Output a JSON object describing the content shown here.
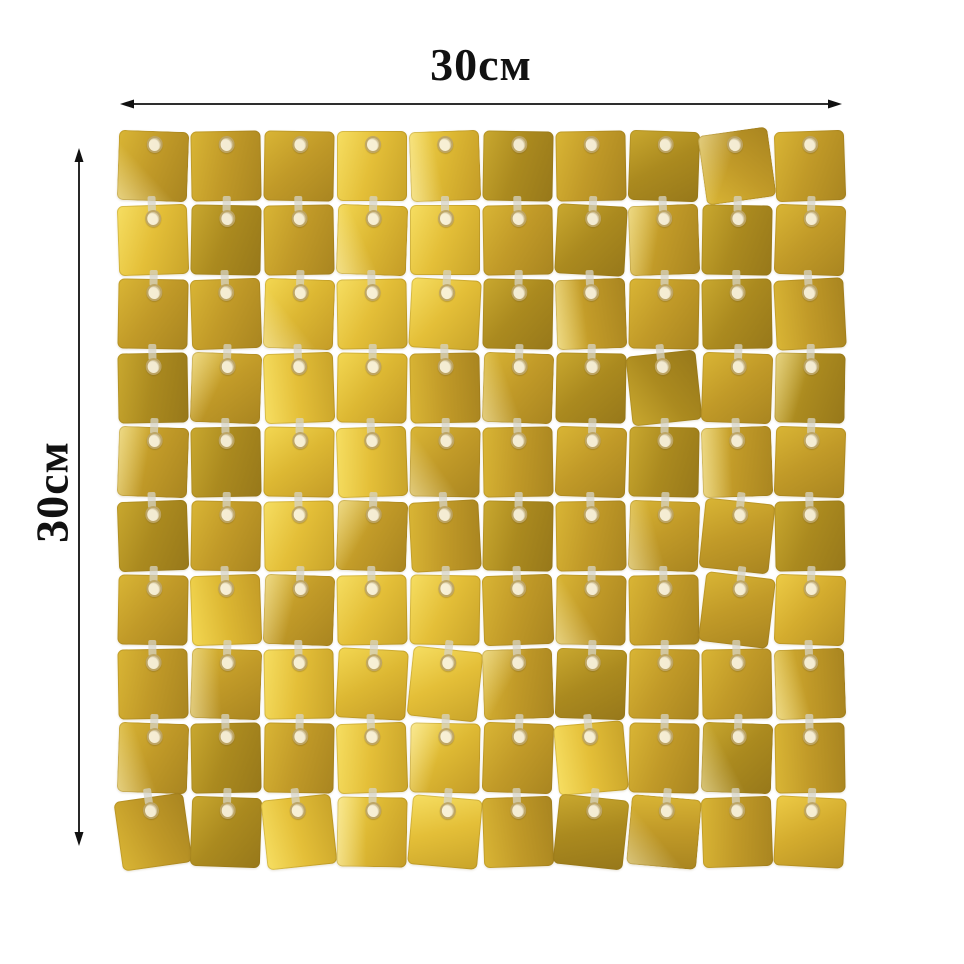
{
  "annotations": {
    "width_label": "30см",
    "height_label": "30см",
    "arrow_color": "#111111"
  },
  "panel": {
    "rows": 10,
    "cols": 10,
    "description": "gold square sequin shimmer wall panel, 10 by 10 grid",
    "background_color": "#ffffff",
    "grommet_fill": "#f8f3e2",
    "grommet_ring": "#9e7e28",
    "palette": [
      [
        "#c9a82f",
        "#ab8a1f",
        "#97781a"
      ],
      [
        "#d9b535",
        "#c19a28",
        "#a98520"
      ],
      [
        "#edcb46",
        "#d4ac2e",
        "#b89224"
      ],
      [
        "#f6de62",
        "#e4bf38",
        "#c9a42a"
      ],
      [
        "#f3d752",
        "#ddb833",
        "#c49c27"
      ]
    ],
    "variants": [
      [
        1,
        1,
        1,
        3,
        4,
        0,
        1,
        0,
        1,
        1
      ],
      [
        3,
        0,
        1,
        4,
        3,
        1,
        0,
        1,
        0,
        1
      ],
      [
        1,
        1,
        4,
        3,
        3,
        0,
        1,
        1,
        0,
        1
      ],
      [
        0,
        1,
        3,
        4,
        1,
        1,
        0,
        0,
        1,
        0
      ],
      [
        1,
        0,
        4,
        3,
        1,
        1,
        1,
        0,
        1,
        1
      ],
      [
        0,
        1,
        3,
        1,
        1,
        0,
        1,
        1,
        1,
        0
      ],
      [
        1,
        4,
        1,
        3,
        3,
        1,
        1,
        1,
        1,
        2
      ],
      [
        1,
        1,
        3,
        4,
        3,
        1,
        0,
        1,
        1,
        1
      ],
      [
        1,
        0,
        1,
        3,
        4,
        1,
        3,
        1,
        0,
        1
      ],
      [
        1,
        0,
        3,
        4,
        3,
        1,
        0,
        1,
        1,
        2
      ]
    ],
    "rotations": [
      [
        2,
        -1,
        1,
        0,
        -2,
        1,
        -1,
        2,
        -8,
        -2
      ],
      [
        -2,
        1,
        -1,
        2,
        0,
        -1,
        3,
        -2,
        1,
        2
      ],
      [
        1,
        -2,
        2,
        -1,
        3,
        1,
        -2,
        1,
        -1,
        -3
      ],
      [
        -1,
        2,
        -2,
        1,
        -1,
        2,
        1,
        -6,
        2,
        1
      ],
      [
        2,
        -1,
        1,
        -2,
        1,
        -1,
        2,
        1,
        -2,
        2
      ],
      [
        -2,
        1,
        -1,
        2,
        -3,
        1,
        -1,
        2,
        6,
        -1
      ],
      [
        1,
        -2,
        2,
        -1,
        1,
        -2,
        1,
        -1,
        7,
        2
      ],
      [
        -1,
        2,
        -1,
        3,
        6,
        -2,
        2,
        1,
        -1,
        -2
      ],
      [
        2,
        -1,
        1,
        -2,
        1,
        2,
        -5,
        1,
        2,
        -1
      ],
      [
        -8,
        2,
        -6,
        1,
        5,
        -2,
        6,
        5,
        -2,
        3
      ]
    ]
  }
}
